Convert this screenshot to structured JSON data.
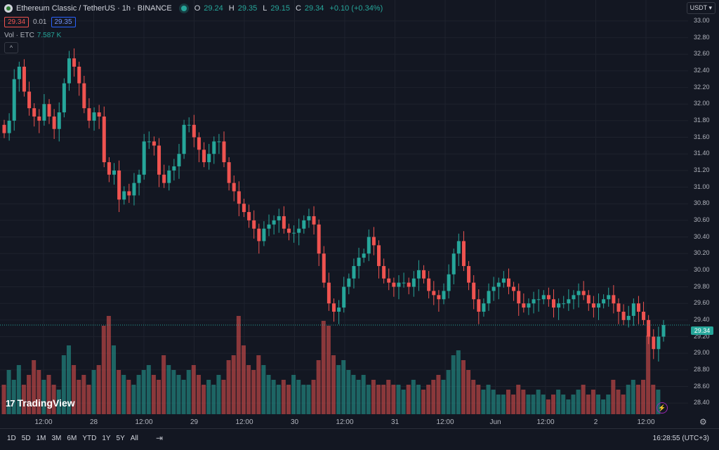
{
  "header": {
    "symbol": "Ethereum Classic / TetherUS · 1h · BINANCE",
    "open_key": "O",
    "open": "29.24",
    "high_key": "H",
    "high": "29.35",
    "low_key": "L",
    "low": "29.15",
    "close_key": "C",
    "close": "29.34",
    "change": "+0.10 (+0.34%)",
    "sell_price": "29.34",
    "spread": "0.01",
    "buy_price": "29.35",
    "volume_label": "Vol · ETC",
    "volume_value": "7.587 K",
    "collapse_glyph": "^"
  },
  "currency_button": "USDT ▾",
  "current_price_tag": "29.34",
  "watermark": "TradingView",
  "watermark_mark": "17",
  "bottom_bar": {
    "ranges": [
      "1D",
      "5D",
      "1M",
      "3M",
      "6M",
      "YTD",
      "1Y",
      "5Y",
      "All"
    ],
    "date_range_icon": "calendar-range-icon",
    "clock": "16:28:55 (UTC+3)"
  },
  "colors": {
    "up": "#26a69a",
    "down": "#ef5350",
    "background": "#131722"
  },
  "chart_data": {
    "type": "candlestick",
    "y_ticks": [
      "33.00",
      "32.80",
      "32.60",
      "32.40",
      "32.20",
      "32.00",
      "31.80",
      "31.60",
      "31.40",
      "31.20",
      "31.00",
      "30.80",
      "30.60",
      "30.40",
      "30.20",
      "30.00",
      "29.80",
      "29.60",
      "29.40",
      "29.20",
      "29.00",
      "28.80",
      "28.60",
      "28.40"
    ],
    "x_ticks": [
      "12:00",
      "28",
      "12:00",
      "29",
      "12:00",
      "30",
      "12:00",
      "31",
      "12:00",
      "Jun",
      "12:00",
      "2",
      "12:00"
    ],
    "ylim": [
      28.3,
      33.05
    ],
    "candles_close": [
      31.65,
      31.8,
      32.3,
      32.45,
      32.15,
      31.95,
      31.85,
      31.8,
      32.0,
      31.85,
      31.7,
      31.9,
      32.25,
      32.55,
      32.45,
      32.25,
      31.95,
      31.8,
      31.9,
      31.85,
      31.3,
      31.15,
      31.2,
      30.85,
      30.95,
      30.9,
      31.05,
      31.15,
      31.55,
      31.55,
      31.5,
      31.15,
      31.05,
      31.2,
      31.25,
      31.4,
      31.75,
      31.75,
      31.6,
      31.45,
      31.3,
      31.4,
      31.55,
      31.55,
      31.3,
      31.05,
      30.95,
      30.8,
      30.7,
      30.6,
      30.5,
      30.35,
      30.5,
      30.55,
      30.6,
      30.65,
      30.5,
      30.45,
      30.45,
      30.5,
      30.6,
      30.65,
      30.55,
      30.2,
      29.85,
      29.6,
      29.5,
      29.55,
      29.8,
      29.9,
      30.05,
      30.15,
      30.2,
      30.4,
      30.3,
      30.05,
      29.9,
      29.85,
      29.8,
      29.85,
      29.85,
      29.8,
      29.9,
      30.0,
      29.9,
      29.75,
      29.7,
      29.65,
      29.75,
      29.95,
      30.2,
      30.35,
      30.05,
      29.85,
      29.65,
      29.5,
      29.6,
      29.75,
      29.8,
      29.85,
      29.9,
      29.8,
      29.75,
      29.6,
      29.55,
      29.6,
      29.65,
      29.65,
      29.7,
      29.65,
      29.55,
      29.6,
      29.6,
      29.65,
      29.7,
      29.75,
      29.7,
      29.6,
      29.55,
      29.6,
      29.65,
      29.7,
      29.6,
      29.5,
      29.4,
      29.45,
      29.6,
      29.5,
      29.4,
      29.2,
      29.05,
      29.2,
      29.34
    ],
    "candles_open": [
      31.75,
      31.65,
      31.8,
      32.3,
      32.45,
      32.15,
      31.95,
      31.85,
      31.8,
      32.0,
      31.85,
      31.7,
      31.9,
      32.25,
      32.55,
      32.45,
      32.25,
      31.95,
      31.8,
      31.9,
      31.85,
      31.3,
      31.15,
      31.2,
      30.85,
      30.95,
      30.9,
      31.05,
      31.15,
      31.55,
      31.55,
      31.5,
      31.15,
      31.05,
      31.2,
      31.25,
      31.4,
      31.75,
      31.75,
      31.6,
      31.45,
      31.3,
      31.4,
      31.55,
      31.55,
      31.3,
      31.05,
      30.95,
      30.8,
      30.7,
      30.6,
      30.5,
      30.35,
      30.5,
      30.55,
      30.6,
      30.65,
      30.5,
      30.45,
      30.45,
      30.5,
      30.6,
      30.65,
      30.55,
      30.2,
      29.85,
      29.6,
      29.5,
      29.55,
      29.8,
      29.9,
      30.05,
      30.15,
      30.2,
      30.4,
      30.3,
      30.05,
      29.9,
      29.85,
      29.8,
      29.85,
      29.85,
      29.8,
      29.9,
      30.0,
      29.9,
      29.75,
      29.7,
      29.65,
      29.75,
      29.95,
      30.2,
      30.35,
      30.05,
      29.85,
      29.65,
      29.5,
      29.6,
      29.75,
      29.8,
      29.85,
      29.9,
      29.8,
      29.75,
      29.6,
      29.55,
      29.6,
      29.65,
      29.65,
      29.7,
      29.65,
      29.55,
      29.6,
      29.6,
      29.65,
      29.7,
      29.75,
      29.7,
      29.6,
      29.55,
      29.6,
      29.65,
      29.7,
      29.6,
      29.5,
      29.4,
      29.45,
      29.6,
      29.5,
      29.4,
      29.2,
      29.05,
      29.2
    ],
    "volume_relative": [
      0.3,
      0.45,
      0.35,
      0.5,
      0.3,
      0.4,
      0.55,
      0.45,
      0.35,
      0.4,
      0.3,
      0.25,
      0.6,
      0.7,
      0.5,
      0.35,
      0.4,
      0.3,
      0.45,
      0.5,
      0.9,
      1.0,
      0.7,
      0.45,
      0.4,
      0.35,
      0.3,
      0.4,
      0.45,
      0.5,
      0.4,
      0.35,
      0.6,
      0.5,
      0.45,
      0.4,
      0.35,
      0.45,
      0.5,
      0.4,
      0.3,
      0.35,
      0.3,
      0.4,
      0.35,
      0.55,
      0.6,
      1.0,
      0.7,
      0.5,
      0.45,
      0.6,
      0.5,
      0.4,
      0.35,
      0.3,
      0.35,
      0.3,
      0.4,
      0.35,
      0.3,
      0.3,
      0.35,
      0.55,
      0.95,
      0.9,
      0.6,
      0.5,
      0.55,
      0.45,
      0.4,
      0.35,
      0.4,
      0.3,
      0.35,
      0.3,
      0.3,
      0.35,
      0.3,
      0.3,
      0.25,
      0.3,
      0.35,
      0.3,
      0.25,
      0.3,
      0.35,
      0.4,
      0.35,
      0.45,
      0.6,
      0.65,
      0.55,
      0.45,
      0.35,
      0.3,
      0.25,
      0.3,
      0.25,
      0.2,
      0.2,
      0.25,
      0.2,
      0.3,
      0.25,
      0.2,
      0.2,
      0.25,
      0.2,
      0.15,
      0.2,
      0.25,
      0.2,
      0.15,
      0.2,
      0.25,
      0.3,
      0.2,
      0.25,
      0.2,
      0.15,
      0.2,
      0.35,
      0.25,
      0.2,
      0.3,
      0.35,
      0.3,
      0.35,
      0.8,
      0.3,
      0.25
    ]
  }
}
